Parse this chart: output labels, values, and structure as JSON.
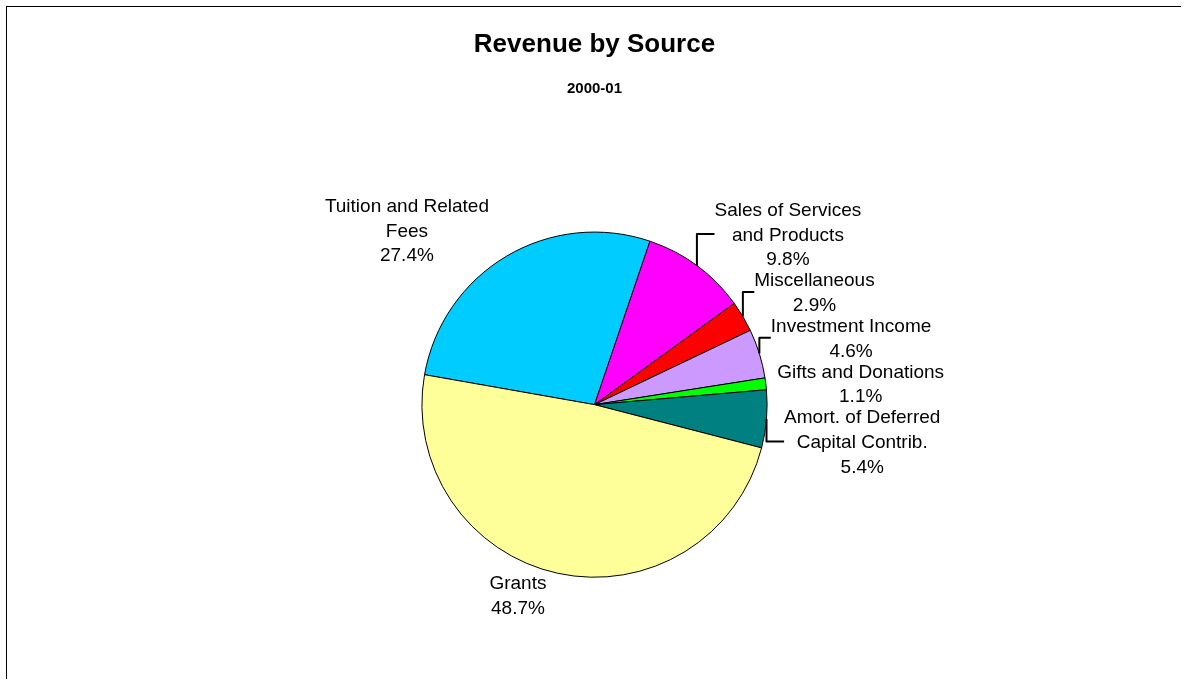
{
  "chart_data": {
    "type": "pie",
    "title": "Revenue by Source",
    "subtitle": "2000-01",
    "categories": [
      "Tuition and Related Fees",
      "Sales of Services and Products",
      "Miscellaneous",
      "Investment Income",
      "Gifts and Donations",
      "Amort. of Deferred Capital Contrib.",
      "Grants"
    ],
    "values": [
      27.4,
      9.8,
      2.9,
      4.6,
      1.1,
      5.4,
      48.7
    ],
    "value_labels": [
      "27.4%",
      "9.8%",
      "2.9%",
      "4.6%",
      "1.1%",
      "5.4%",
      "48.7%"
    ],
    "colors": [
      "#00ccff",
      "#ff00ff",
      "#ff0000",
      "#cc99ff",
      "#00ff00",
      "#008080",
      "#ffff99"
    ],
    "legend": false
  }
}
